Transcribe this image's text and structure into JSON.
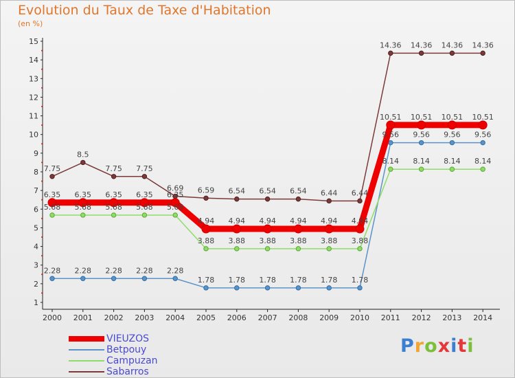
{
  "header": {
    "title": "Evolution du Taux de Taxe d'Habitation",
    "subtitle": "(en %)"
  },
  "logo": {
    "text": "Proxiti",
    "colors": [
      "#3a7fd1",
      "#f3a531",
      "#7bbf3a",
      "#e5373a",
      "#3a7fd1",
      "#e5373a",
      "#7bbf3a"
    ]
  },
  "chart_data": {
    "type": "line",
    "title": "Evolution du Taux de Taxe d'Habitation",
    "ylabel": "(en %)",
    "xlabel": "",
    "ylim": [
      1,
      15
    ],
    "yticks": [
      1,
      2,
      3,
      4,
      5,
      6,
      7,
      8,
      9,
      10,
      11,
      12,
      13,
      14,
      15
    ],
    "grid": false,
    "legend_position": "bottom-left",
    "x": [
      "2000",
      "2001",
      "2002",
      "2003",
      "2004",
      "2005",
      "2006",
      "2007",
      "2008",
      "2009",
      "2010",
      "2011",
      "2012",
      "2013",
      "2014"
    ],
    "series": [
      {
        "name": "VIEUZOS",
        "color": "#ee0000",
        "values": [
          6.35,
          6.35,
          6.35,
          6.35,
          6.35,
          4.94,
          4.94,
          4.94,
          4.94,
          4.94,
          4.94,
          10.51,
          10.51,
          10.51,
          10.51
        ],
        "labels": [
          "6.35",
          "6.35",
          "6.35",
          "6.35",
          "6.35",
          "4.94",
          "4.94",
          "4.94",
          "4.94",
          "4.94",
          "4.94",
          "10.51",
          "10.51",
          "10.51",
          "10.51"
        ]
      },
      {
        "name": "Betpouy",
        "color": "#5b93c8",
        "values": [
          2.28,
          2.28,
          2.28,
          2.28,
          2.28,
          1.78,
          1.78,
          1.78,
          1.78,
          1.78,
          1.78,
          9.56,
          9.56,
          9.56,
          9.56
        ],
        "labels": [
          "2.28",
          "2.28",
          "2.28",
          "2.28",
          "2.28",
          "1.78",
          "1.78",
          "1.78",
          "1.78",
          "1.78",
          "1.78",
          "9.56",
          "9.56",
          "9.56",
          "9.56"
        ]
      },
      {
        "name": "Campuzan",
        "color": "#8fdc68",
        "values": [
          5.68,
          5.68,
          5.68,
          5.68,
          5.68,
          3.88,
          3.88,
          3.88,
          3.88,
          3.88,
          3.88,
          8.14,
          8.14,
          8.14,
          8.14
        ],
        "labels": [
          "5.68",
          "5.68",
          "5.68",
          "5.68",
          "5.68",
          "3.88",
          "3.88",
          "3.88",
          "3.88",
          "3.88",
          "3.88",
          "8.14",
          "8.14",
          "8.14",
          "8.14"
        ]
      },
      {
        "name": "Sabarros",
        "color": "#7a3a3a",
        "values": [
          7.75,
          8.5,
          7.75,
          7.75,
          6.69,
          6.59,
          6.54,
          6.54,
          6.54,
          6.44,
          6.44,
          14.36,
          14.36,
          14.36,
          14.36
        ],
        "labels": [
          "7.75",
          "8.5",
          "7.75",
          "7.75",
          "6.69",
          "6.59",
          "6.54",
          "6.54",
          "6.54",
          "6.44",
          "6.44",
          "14.36",
          "14.36",
          "14.36",
          "14.36"
        ]
      }
    ]
  }
}
